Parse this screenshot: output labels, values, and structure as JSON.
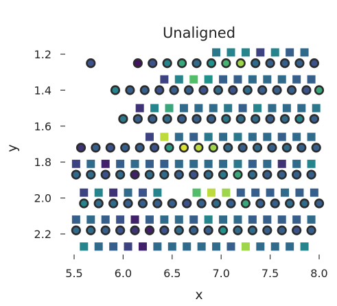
{
  "chart_data": {
    "type": "scatter",
    "title": "Unaligned",
    "xlabel": "x",
    "ylabel": "y",
    "xlim": [
      5.42,
      8.05
    ],
    "ylim": [
      2.33,
      1.15
    ],
    "y_inverted": true,
    "xticks": [
      "5.5",
      "6.0",
      "6.5",
      "7.0",
      "7.5",
      "8.0"
    ],
    "yticks": [
      "1.2",
      "1.4",
      "1.6",
      "1.8",
      "2.0",
      "2.2"
    ],
    "grid": false,
    "colormap": [
      "#440154",
      "#3b528b",
      "#21918c",
      "#5ec962",
      "#fde725"
    ],
    "series": [
      {
        "marker": "circle",
        "y": 1.25,
        "x": [
          5.67,
          6.15,
          6.3,
          6.45,
          6.6,
          6.75,
          6.9,
          7.05,
          7.2,
          7.35,
          7.5,
          7.65,
          7.8,
          7.95
        ],
        "c": [
          0.25,
          0.05,
          0.25,
          0.45,
          0.6,
          0.35,
          0.5,
          0.65,
          0.85,
          0.35,
          0.3,
          0.3,
          0.3,
          0.25
        ]
      },
      {
        "marker": "square",
        "y": 1.19,
        "x": [
          6.95,
          7.1,
          7.25,
          7.4,
          7.55,
          7.7,
          7.85
        ],
        "c": [
          0.4,
          0.45,
          0.45,
          0.2,
          0.45,
          0.3,
          0.35
        ]
      },
      {
        "marker": "circle",
        "y": 1.4,
        "x": [
          5.92,
          6.07,
          6.22,
          6.37,
          6.52,
          6.67,
          6.82,
          6.97,
          7.12,
          7.27,
          7.42,
          7.57,
          7.72,
          7.87,
          8.0
        ],
        "c": [
          0.45,
          0.3,
          0.3,
          0.25,
          0.3,
          0.3,
          0.25,
          0.35,
          0.25,
          0.35,
          0.3,
          0.3,
          0.3,
          0.25,
          0.6
        ]
      },
      {
        "marker": "square",
        "y": 1.34,
        "x": [
          6.42,
          6.57,
          6.72,
          6.87,
          7.02,
          7.17,
          7.32,
          7.47,
          7.62,
          7.77,
          7.92
        ],
        "c": [
          0.2,
          0.45,
          0.7,
          0.5,
          0.3,
          0.3,
          0.35,
          0.35,
          0.35,
          0.3,
          0.3
        ]
      },
      {
        "marker": "circle",
        "y": 1.56,
        "x": [
          6.0,
          6.15,
          6.3,
          6.45,
          6.6,
          6.75,
          6.9,
          7.05,
          7.2,
          7.35,
          7.5,
          7.65,
          7.8,
          7.95
        ],
        "c": [
          0.4,
          0.3,
          0.3,
          0.35,
          0.3,
          0.3,
          0.3,
          0.4,
          0.35,
          0.35,
          0.3,
          0.35,
          0.45,
          0.3
        ]
      },
      {
        "marker": "square",
        "y": 1.5,
        "x": [
          6.17,
          6.32,
          6.47,
          6.62,
          6.77,
          6.92,
          7.07,
          7.22,
          7.37,
          7.52,
          7.67,
          7.82,
          7.97
        ],
        "c": [
          0.15,
          0.45,
          0.6,
          0.35,
          0.35,
          0.35,
          0.4,
          0.3,
          0.45,
          0.35,
          0.35,
          0.35,
          0.4
        ]
      },
      {
        "marker": "circle",
        "y": 1.72,
        "x": [
          5.57,
          5.72,
          5.87,
          6.02,
          6.17,
          6.32,
          6.47,
          6.62,
          6.77,
          6.92,
          7.07,
          7.22,
          7.37,
          7.52,
          7.67,
          7.82,
          7.97
        ],
        "c": [
          0.15,
          0.3,
          0.25,
          0.3,
          0.3,
          0.25,
          0.55,
          0.95,
          0.9,
          0.85,
          0.35,
          0.3,
          0.35,
          0.3,
          0.35,
          0.3,
          0.3
        ]
      },
      {
        "marker": "square",
        "y": 1.66,
        "x": [
          6.27,
          6.42,
          6.57,
          6.72,
          6.87,
          7.02,
          7.17,
          7.32,
          7.47,
          7.62,
          7.77,
          7.92
        ],
        "c": [
          0.2,
          0.9,
          0.35,
          0.3,
          0.4,
          0.35,
          0.4,
          0.35,
          0.35,
          0.3,
          0.35,
          0.35
        ]
      },
      {
        "marker": "circle",
        "y": 1.87,
        "x": [
          5.52,
          5.67,
          5.82,
          5.97,
          6.12,
          6.27,
          6.42,
          6.57,
          6.72,
          6.87,
          7.02,
          7.17,
          7.32,
          7.47,
          7.62,
          7.77,
          7.92
        ],
        "c": [
          0.35,
          0.35,
          0.25,
          0.35,
          0.1,
          0.35,
          0.35,
          0.3,
          0.25,
          0.35,
          0.4,
          0.6,
          0.35,
          0.3,
          0.3,
          0.3,
          0.3
        ]
      },
      {
        "marker": "square",
        "y": 1.81,
        "x": [
          5.52,
          5.67,
          5.82,
          5.97,
          6.12,
          6.27,
          6.42,
          6.57,
          6.72,
          6.87,
          7.02,
          7.17,
          7.32,
          7.47,
          7.62,
          7.77,
          7.92
        ],
        "c": [
          0.2,
          0.35,
          0.1,
          0.3,
          0.35,
          0.3,
          0.3,
          0.35,
          0.35,
          0.35,
          0.35,
          0.4,
          0.3,
          0.35,
          0.15,
          0.35,
          0.45
        ]
      },
      {
        "marker": "circle",
        "y": 2.03,
        "x": [
          5.6,
          5.75,
          5.9,
          6.05,
          6.2,
          6.35,
          6.5,
          6.65,
          6.8,
          6.95,
          7.1,
          7.25,
          7.4,
          7.55,
          7.7,
          7.85,
          8.0
        ],
        "c": [
          0.45,
          0.35,
          0.35,
          0.3,
          0.3,
          0.3,
          0.3,
          0.25,
          0.3,
          0.35,
          0.3,
          0.6,
          0.3,
          0.3,
          0.35,
          0.35,
          0.3
        ]
      },
      {
        "marker": "square",
        "y": 1.97,
        "x": [
          5.6,
          5.75,
          5.9,
          6.05,
          6.2,
          6.35,
          6.75,
          6.9,
          7.05,
          7.2,
          7.35,
          7.5,
          7.65,
          7.8,
          7.95
        ],
        "c": [
          0.2,
          0.45,
          0.15,
          0.35,
          0.25,
          0.45,
          0.7,
          0.9,
          0.85,
          0.3,
          0.3,
          0.3,
          0.35,
          0.3,
          0.3
        ]
      },
      {
        "marker": "circle",
        "y": 2.18,
        "x": [
          5.52,
          5.67,
          5.82,
          5.97,
          6.12,
          6.27,
          6.42,
          6.57,
          6.72,
          6.87,
          7.02,
          7.17,
          7.32,
          7.47,
          7.62,
          7.77,
          7.92
        ],
        "c": [
          0.35,
          0.35,
          0.3,
          0.25,
          0.15,
          0.1,
          0.25,
          0.35,
          0.3,
          0.3,
          0.5,
          0.35,
          0.35,
          0.3,
          0.3,
          0.25,
          0.3
        ]
      },
      {
        "marker": "square",
        "y": 2.12,
        "x": [
          5.52,
          5.67,
          5.82,
          5.97,
          6.12,
          6.27,
          6.42,
          6.57,
          6.72,
          6.87,
          7.02,
          7.17,
          7.32,
          7.47,
          7.62,
          7.77,
          7.92
        ],
        "c": [
          0.3,
          0.35,
          0.3,
          0.25,
          0.1,
          0.3,
          0.35,
          0.35,
          0.3,
          0.45,
          0.35,
          0.35,
          0.3,
          0.3,
          0.3,
          0.3,
          0.35
        ]
      },
      {
        "marker": "square",
        "y": 2.27,
        "x": [
          5.6,
          5.75,
          5.9,
          6.05,
          6.2,
          6.35,
          6.5,
          6.65,
          6.8,
          6.95,
          7.1,
          7.25,
          7.4,
          7.55,
          7.7,
          7.85
        ],
        "c": [
          0.45,
          0.35,
          0.3,
          0.2,
          0.1,
          0.35,
          0.35,
          0.35,
          0.35,
          0.35,
          0.3,
          0.85,
          0.35,
          0.35,
          0.35,
          0.45
        ]
      }
    ]
  }
}
